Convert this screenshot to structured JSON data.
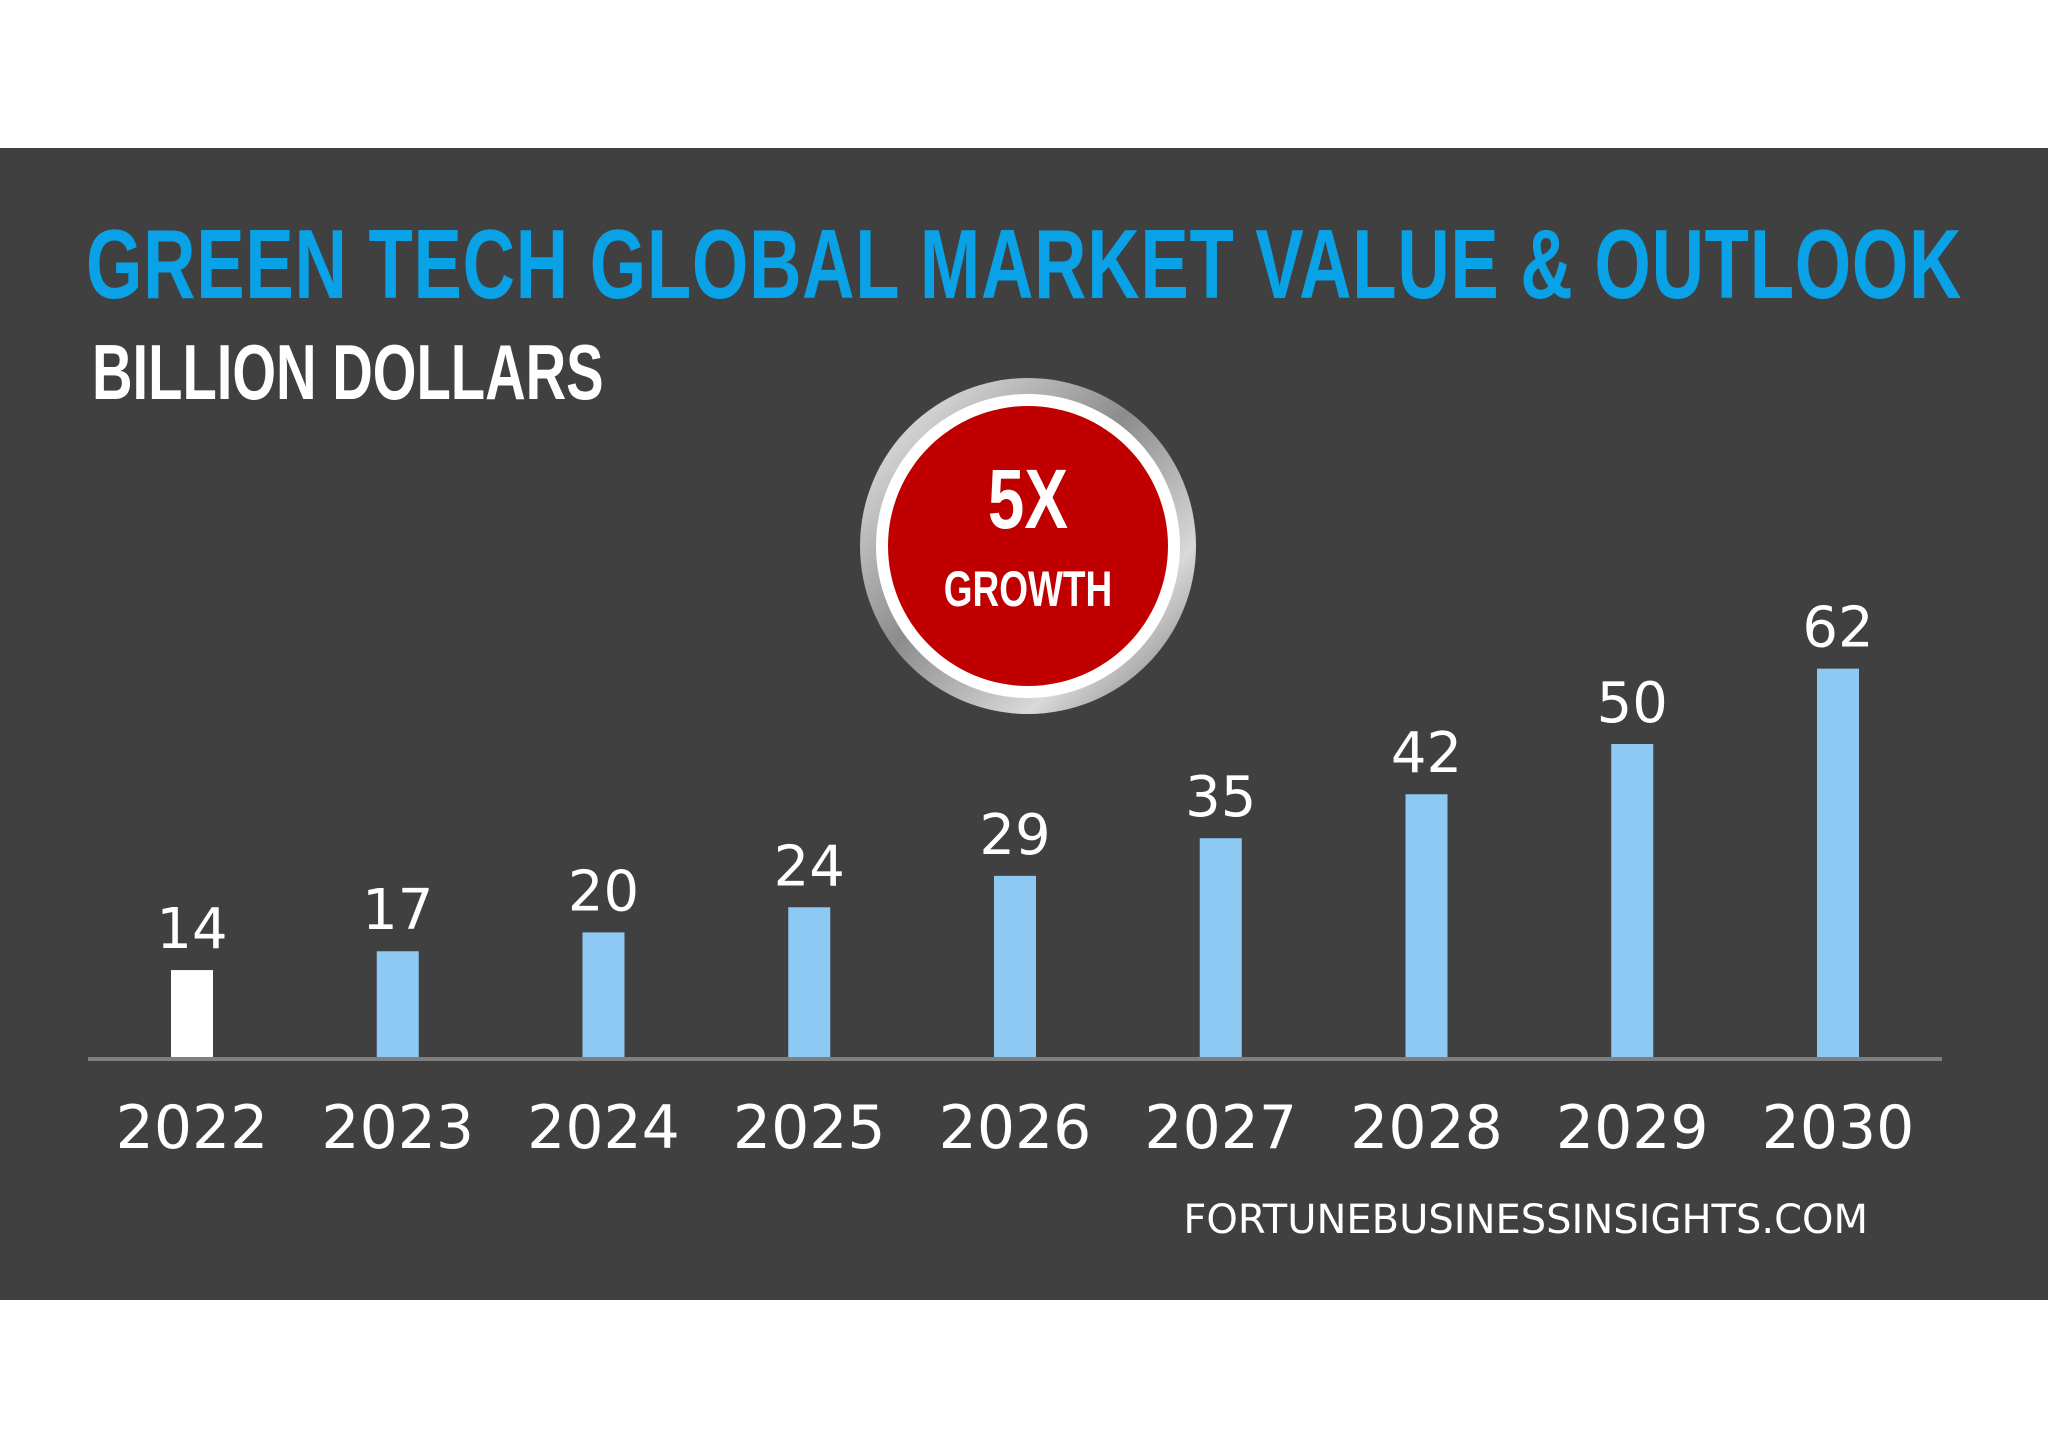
{
  "title": "GREEN TECH GLOBAL MARKET VALUE & OUTLOOK",
  "subtitle": "BILLION DOLLARS",
  "badge": {
    "value": "5X",
    "label": "GROWTH"
  },
  "source": "FORTUNEBUSINESSINSIGHTS.COM",
  "colors": {
    "title": "#0aa2e6",
    "background": "#404040",
    "bar": "#8ec9f3",
    "highlight_bar": "#ffffff",
    "badge_fill": "#c00000"
  },
  "chart_data": {
    "type": "bar",
    "title": "GREEN TECH GLOBAL MARKET VALUE & OUTLOOK",
    "subtitle": "BILLION DOLLARS",
    "categories": [
      "2022",
      "2023",
      "2024",
      "2025",
      "2026",
      "2027",
      "2028",
      "2029",
      "2030"
    ],
    "values": [
      14,
      17,
      20,
      24,
      29,
      35,
      42,
      50,
      62
    ],
    "highlighted_category": "2022",
    "data_labels": true,
    "grid": false,
    "ylim": [
      0,
      70
    ]
  }
}
